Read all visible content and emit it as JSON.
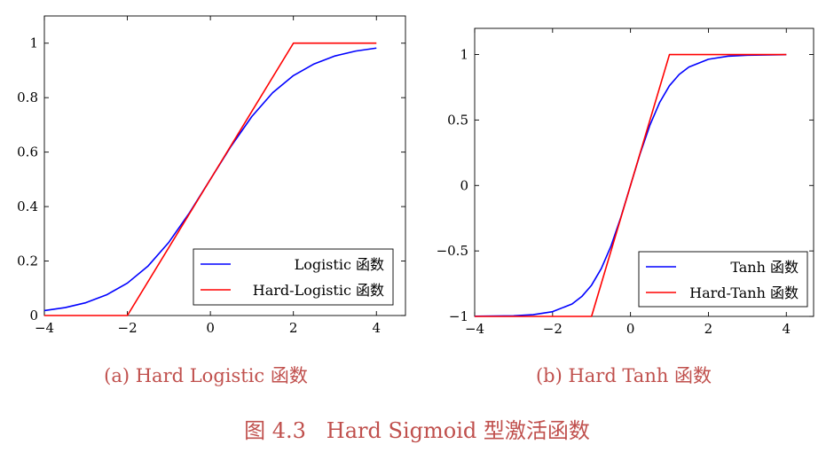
{
  "figure": {
    "caption": "图 4.3   Hard Sigmoid 型激活函数"
  },
  "chart_data": [
    {
      "type": "line",
      "subtitle": "(a) Hard Logistic 函数",
      "xlim": [
        -4,
        4.7
      ],
      "ylim": [
        0,
        1.1
      ],
      "xticks": [
        -4,
        -2,
        0,
        2,
        4
      ],
      "xtick_labels": [
        "−4",
        "−2",
        "0",
        "2",
        "4"
      ],
      "yticks": [
        0,
        0.2,
        0.4,
        0.6,
        0.8,
        1
      ],
      "ytick_labels": [
        "0",
        "0.2",
        "0.4",
        "0.6",
        "0.8",
        "1"
      ],
      "grid": false,
      "legend_position": "bottom-right",
      "series": [
        {
          "name": "Logistic 函数",
          "color": "#0000ff",
          "x": [
            -4,
            -3.5,
            -3,
            -2.5,
            -2,
            -1.5,
            -1,
            -0.5,
            0,
            0.5,
            1,
            1.5,
            2,
            2.5,
            3,
            3.5,
            4
          ],
          "y": [
            0.018,
            0.029,
            0.047,
            0.076,
            0.119,
            0.182,
            0.269,
            0.378,
            0.5,
            0.622,
            0.731,
            0.818,
            0.881,
            0.924,
            0.953,
            0.971,
            0.982
          ]
        },
        {
          "name": "Hard-Logistic 函数",
          "color": "#ff0000",
          "x": [
            -4,
            -2,
            2,
            4
          ],
          "y": [
            0,
            0,
            1,
            1
          ]
        }
      ]
    },
    {
      "type": "line",
      "subtitle": "(b) Hard Tanh 函数",
      "xlim": [
        -4,
        4.7
      ],
      "ylim": [
        -1,
        1.2
      ],
      "xticks": [
        -4,
        -2,
        0,
        2,
        4
      ],
      "xtick_labels": [
        "−4",
        "−2",
        "0",
        "2",
        "4"
      ],
      "yticks": [
        -1,
        -0.5,
        0,
        0.5,
        1
      ],
      "ytick_labels": [
        "−1",
        "−0.5",
        "0",
        "0.5",
        "1"
      ],
      "grid": false,
      "legend_position": "bottom-right",
      "series": [
        {
          "name": "Tanh 函数",
          "color": "#0000ff",
          "x": [
            -4,
            -3,
            -2.5,
            -2,
            -1.5,
            -1.25,
            -1,
            -0.75,
            -0.5,
            -0.25,
            0,
            0.25,
            0.5,
            0.75,
            1,
            1.25,
            1.5,
            2,
            2.5,
            3,
            4
          ],
          "y": [
            -0.999,
            -0.995,
            -0.987,
            -0.964,
            -0.905,
            -0.848,
            -0.762,
            -0.635,
            -0.462,
            -0.245,
            0,
            0.245,
            0.462,
            0.635,
            0.762,
            0.848,
            0.905,
            0.964,
            0.987,
            0.995,
            0.999
          ]
        },
        {
          "name": "Hard-Tanh 函数",
          "color": "#ff0000",
          "x": [
            -4,
            -1,
            1,
            4
          ],
          "y": [
            -1,
            -1,
            1,
            1
          ]
        }
      ]
    }
  ]
}
